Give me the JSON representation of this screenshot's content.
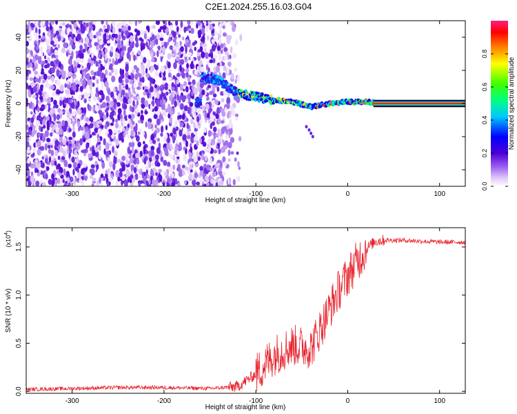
{
  "title": "C2E1.2024.255.16.03.G04",
  "chart_data": [
    {
      "type": "heatmap",
      "xlabel": "Height of straight line (km)",
      "ylabel": "Frequency (Hz)",
      "xlim": [
        -350,
        128
      ],
      "ylim": [
        -50,
        50
      ],
      "x_ticks": [
        -300,
        -200,
        -100,
        0,
        100
      ],
      "y_ticks": [
        -40,
        -20,
        0,
        20,
        40
      ],
      "colorbar": {
        "label": "Normalized spectral amplitude",
        "range": [
          0,
          1
        ],
        "ticks": [
          "0.0",
          "0.2",
          "0.4",
          "0.6",
          "0.8"
        ],
        "colors": [
          "#ffffff",
          "#e0c8f8",
          "#9a5cf0",
          "#4b00d6",
          "#0000ff",
          "#00c8ff",
          "#00ff80",
          "#40ff00",
          "#ffff00",
          "#ff8000",
          "#ff0000",
          "#ff2080"
        ]
      },
      "ridge": {
        "x": [
          -160,
          -140,
          -120,
          -100,
          -80,
          -60,
          -40,
          -20,
          0,
          20,
          40,
          80,
          128
        ],
        "y": [
          16,
          14,
          6,
          4,
          2,
          1,
          -2,
          0,
          1,
          1,
          0,
          0,
          0
        ]
      }
    },
    {
      "type": "line",
      "xlabel": "Height of straight line (km)",
      "ylabel": "SNR (10 * v/v)",
      "y_multiplier": "(x10",
      "y_multiplier_exp": "4",
      "xlim": [
        -350,
        128
      ],
      "ylim": [
        -0.02,
        1.7
      ],
      "x_ticks": [
        -300,
        -200,
        -100,
        0,
        100
      ],
      "y_ticks": [
        "0.0",
        "0.5",
        "1.0",
        "1.5"
      ],
      "color": "#e8202a",
      "x": [
        -350,
        -300,
        -250,
        -200,
        -150,
        -120,
        -100,
        -80,
        -60,
        -40,
        -30,
        -20,
        -10,
        0,
        10,
        20,
        30,
        40,
        60,
        80,
        100,
        128
      ],
      "y": [
        0.02,
        0.03,
        0.04,
        0.04,
        0.03,
        0.05,
        0.18,
        0.38,
        0.48,
        0.45,
        0.65,
        0.85,
        1.05,
        1.2,
        1.35,
        1.48,
        1.56,
        1.57,
        1.57,
        1.56,
        1.55,
        1.55
      ]
    }
  ]
}
